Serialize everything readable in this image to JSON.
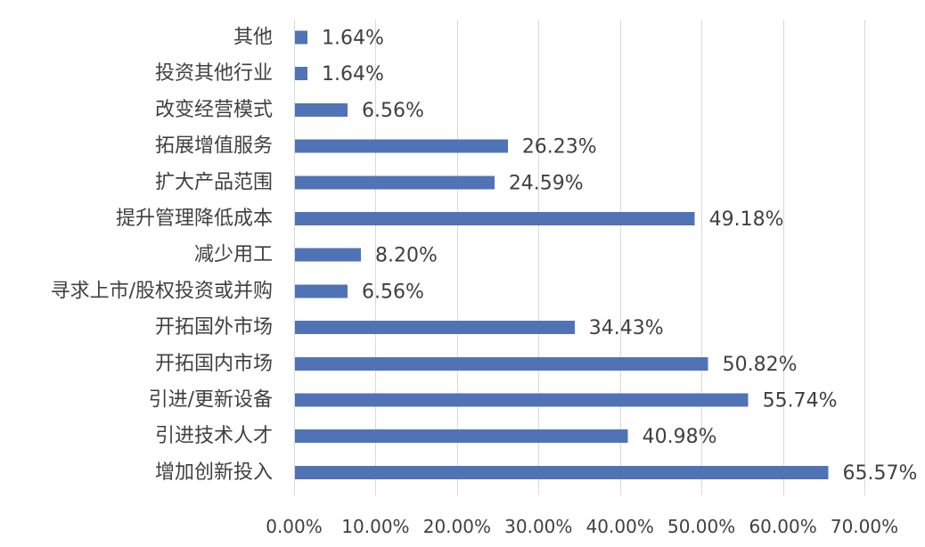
{
  "chart_data": {
    "type": "bar",
    "orientation": "horizontal",
    "categories": [
      "其他",
      "投资其他行业",
      "改变经营模式",
      "拓展增值服务",
      "扩大产品范围",
      "提升管理降低成本",
      "减少用工",
      "寻求上市/股权投资或并购",
      "开拓国外市场",
      "开拓国内市场",
      "引进/更新设备",
      "引进技术人才",
      "增加创新投入"
    ],
    "values": [
      1.64,
      1.64,
      6.56,
      26.23,
      24.59,
      49.18,
      8.2,
      6.56,
      34.43,
      50.82,
      55.74,
      40.98,
      65.57
    ],
    "value_labels": [
      "1.64%",
      "1.64%",
      "6.56%",
      "26.23%",
      "24.59%",
      "49.18%",
      "8.20%",
      "6.56%",
      "34.43%",
      "50.82%",
      "55.74%",
      "40.98%",
      "65.57%"
    ],
    "xlim": [
      0,
      70
    ],
    "x_ticks": [
      0,
      10,
      20,
      30,
      40,
      50,
      60,
      70
    ],
    "x_tick_labels": [
      "0.00%",
      "10.00%",
      "20.00%",
      "30.00%",
      "40.00%",
      "50.00%",
      "60.00%",
      "70.00%"
    ],
    "title": "",
    "xlabel": "",
    "ylabel": "",
    "grid": true,
    "legend": "none",
    "bar_color": "#4F73B5"
  }
}
